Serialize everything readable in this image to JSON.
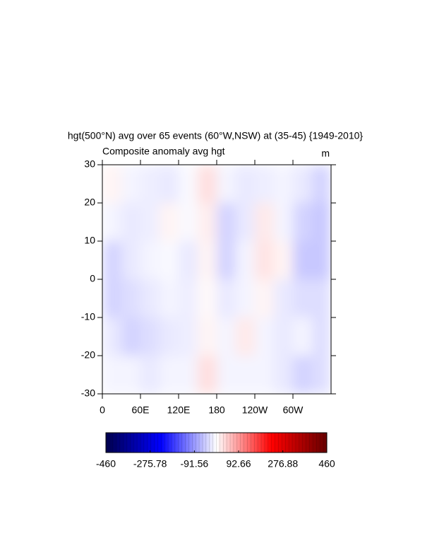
{
  "chart_data": {
    "type": "heatmap",
    "title": "hgt(500°N) avg over 65 events (60°W,NSW) at (35-45) {1949-2010}",
    "subtitle": "Composite anomaly avg hgt",
    "units": "m",
    "xlim": [
      0,
      360
    ],
    "xticks": [
      0,
      {
        "value": 60,
        "label": "60E"
      },
      {
        "value": 120,
        "label": "120E"
      },
      180,
      {
        "value": 240,
        "label": "120W"
      },
      {
        "value": 300,
        "label": "60W"
      }
    ],
    "ylim": [
      -30,
      30
    ],
    "yticks": [
      -30,
      -20,
      -10,
      0,
      10,
      20,
      30
    ],
    "lons": [
      15,
      45,
      75,
      105,
      135,
      165,
      195,
      225,
      255,
      285,
      315,
      345
    ],
    "lats": [
      25,
      15,
      5,
      -5,
      -15,
      -25
    ],
    "values": [
      [
        10,
        -10,
        -15,
        -20,
        -5,
        30,
        -10,
        -20,
        -15,
        -10,
        -20,
        -40
      ],
      [
        -10,
        -20,
        -15,
        10,
        -5,
        15,
        -40,
        -20,
        20,
        -10,
        -40,
        -50
      ],
      [
        -40,
        -20,
        -10,
        -5,
        -20,
        10,
        -40,
        -10,
        25,
        10,
        -50,
        -50
      ],
      [
        -40,
        -30,
        -20,
        -10,
        -15,
        5,
        -20,
        -10,
        10,
        -20,
        -30,
        -30
      ],
      [
        -20,
        -40,
        -30,
        -20,
        -15,
        10,
        -10,
        20,
        -10,
        -20,
        -10,
        -30
      ],
      [
        -10,
        -10,
        -20,
        -10,
        -10,
        30,
        -10,
        -10,
        -10,
        -20,
        -40,
        -30
      ]
    ],
    "colormap": [
      "#00004d",
      "#0000ff",
      "#ffffff",
      "#ff0000",
      "#660000"
    ],
    "colorbar": {
      "range": [
        -460,
        460
      ],
      "ticks": [
        -460,
        -275.78,
        -91.56,
        92.66,
        276.88,
        460
      ]
    }
  }
}
